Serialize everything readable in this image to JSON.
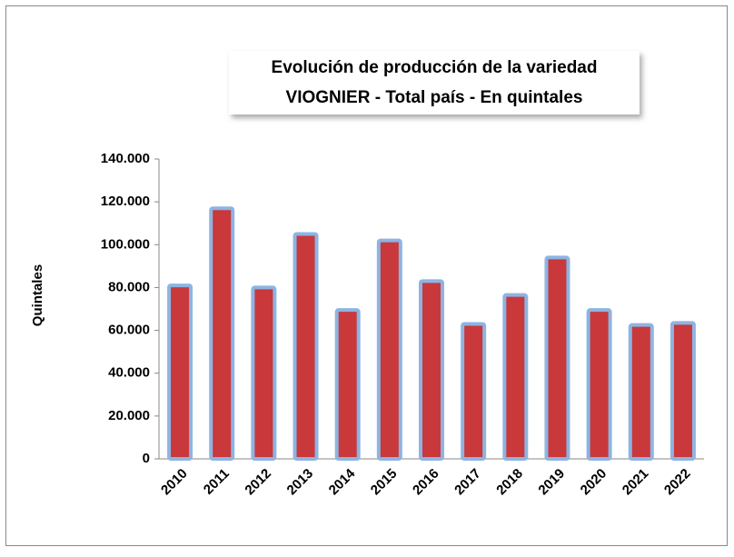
{
  "chart_data": {
    "type": "bar",
    "title": [
      "Evolución de producción de la variedad",
      "VIOGNIER - Total país - En quintales"
    ],
    "ylabel": "Quintales",
    "categories": [
      "2010",
      "2011",
      "2012",
      "2013",
      "2014",
      "2015",
      "2016",
      "2017",
      "2018",
      "2019",
      "2020",
      "2021",
      "2022"
    ],
    "values": [
      81000,
      117000,
      80000,
      105000,
      69500,
      102000,
      83000,
      63000,
      76500,
      94000,
      69500,
      62500,
      63500
    ],
    "color": "#c9383a",
    "edgecolor": "#8db4e2",
    "ylim": [
      0,
      140000
    ],
    "yticks": [
      0,
      {
        "value": 20000,
        "label": "20.000"
      },
      {
        "value": 40000,
        "label": "40.000"
      },
      {
        "value": 60000,
        "label": "60.000"
      },
      {
        "value": 80000,
        "label": "80.000"
      },
      {
        "value": 100000,
        "label": "100.000"
      },
      {
        "value": 120000,
        "label": "120.000"
      },
      {
        "value": 140000,
        "label": "140.000"
      }
    ],
    "grid": false
  }
}
